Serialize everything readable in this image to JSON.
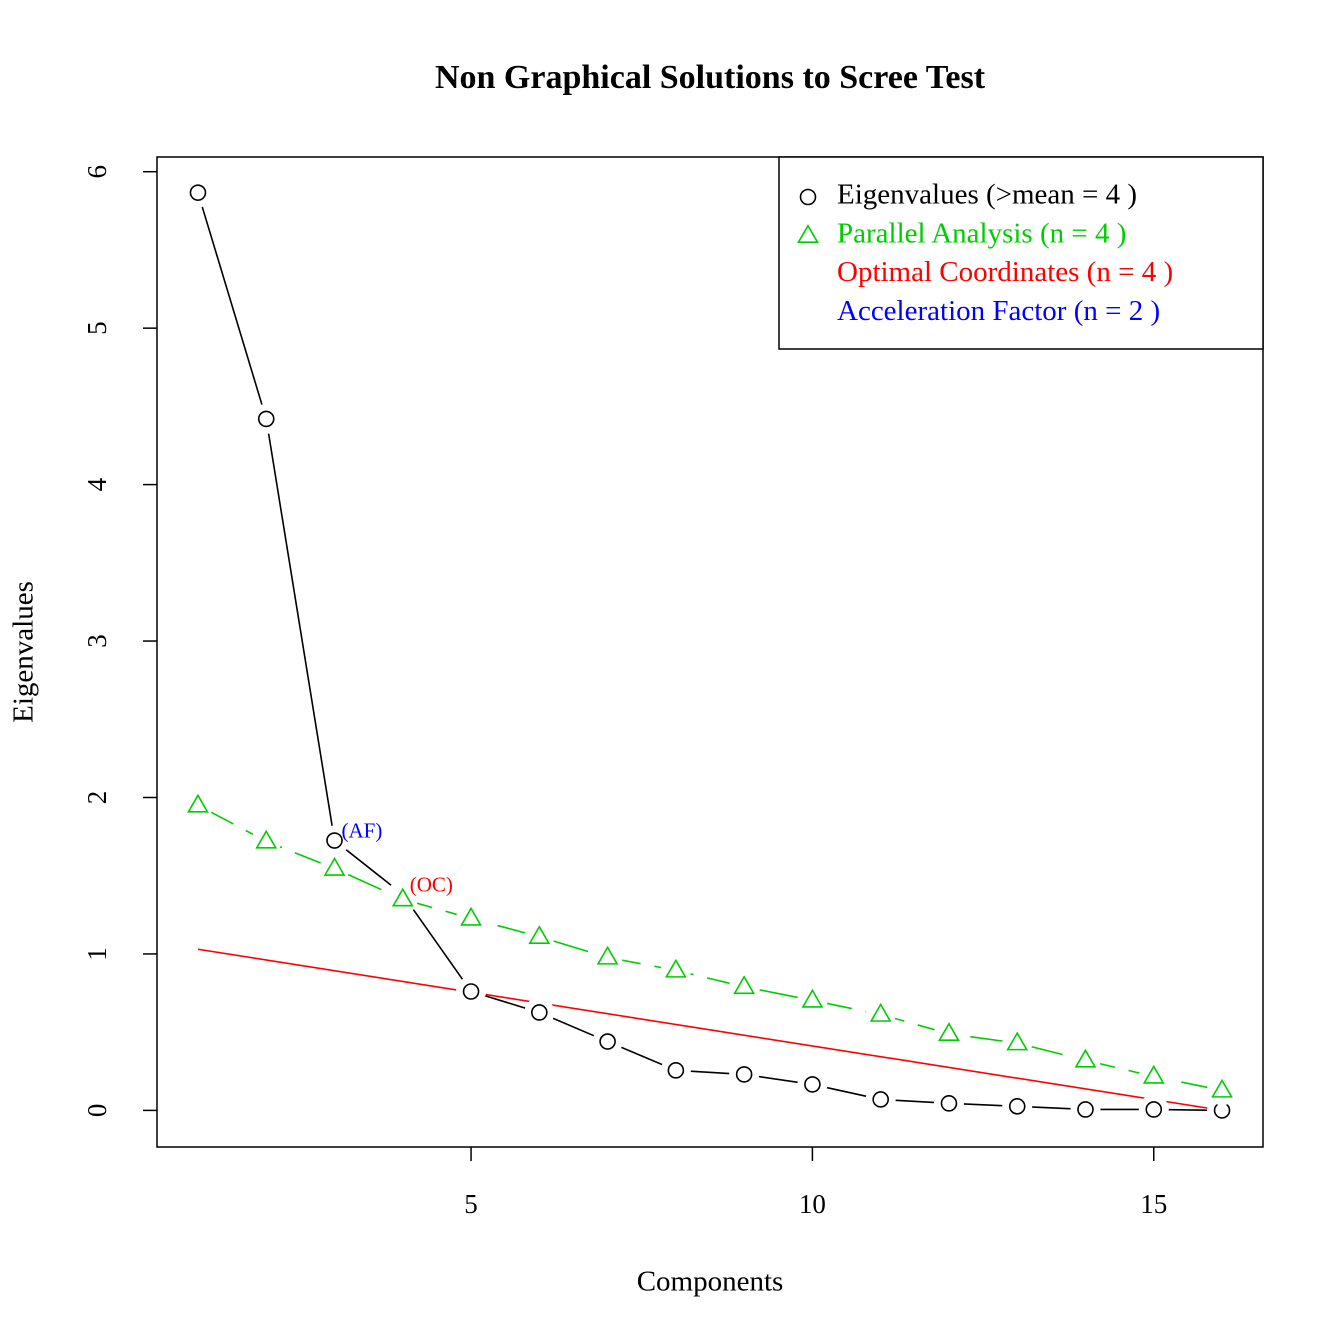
{
  "chart_data": {
    "type": "line",
    "title": "Non Graphical Solutions to Scree Test",
    "xlabel": "Components",
    "ylabel": "Eigenvalues",
    "xlim": [
      0.4,
      16.6
    ],
    "ylim": [
      -0.234,
      6.094
    ],
    "xticks": [
      5,
      10,
      15
    ],
    "yticks": [
      0,
      1,
      2,
      3,
      4,
      5,
      6
    ],
    "legend_position": "top-right",
    "series": [
      {
        "name": "Eigenvalues (>mean  =  4 )",
        "color": "#000000",
        "marker": "circle",
        "dashed": false,
        "x": [
          1,
          2,
          3,
          4,
          5,
          6,
          7,
          8,
          9,
          10,
          11,
          12,
          13,
          14,
          15,
          16
        ],
        "values": [
          5.866,
          4.42,
          1.725,
          1.38,
          0.76,
          0.626,
          0.44,
          0.256,
          0.23,
          0.166,
          0.07,
          0.045,
          0.026,
          0.006,
          0.006,
          0
        ]
      },
      {
        "name": "Parallel Analysis (n =  4 )",
        "color": "#00cd00",
        "marker": "triangle",
        "dashed": true,
        "x": [
          1,
          2,
          3,
          4,
          5,
          6,
          7,
          8,
          9,
          10,
          11,
          12,
          13,
          14,
          15,
          16
        ],
        "values": [
          1.95,
          1.72,
          1.546,
          1.35,
          1.227,
          1.11,
          0.978,
          0.895,
          0.79,
          0.703,
          0.613,
          0.49,
          0.43,
          0.32,
          0.217,
          0.128
        ]
      },
      {
        "name": "Optimal Coordinates (n =  4 )",
        "color": "#ff0000",
        "marker": "none",
        "dashed": false,
        "x": [
          1,
          16
        ],
        "values": [
          1.03,
          0
        ]
      }
    ],
    "extra_legend": [
      {
        "name": "Acceleration Factor (n =  2 )",
        "color": "#0000ff"
      }
    ],
    "annotations": [
      {
        "text": "(AF)",
        "x": 3,
        "y": 1.725,
        "color": "#0000ff"
      },
      {
        "text": "(OC)",
        "x": 4,
        "y": 1.38,
        "color": "#ff0000"
      }
    ]
  }
}
